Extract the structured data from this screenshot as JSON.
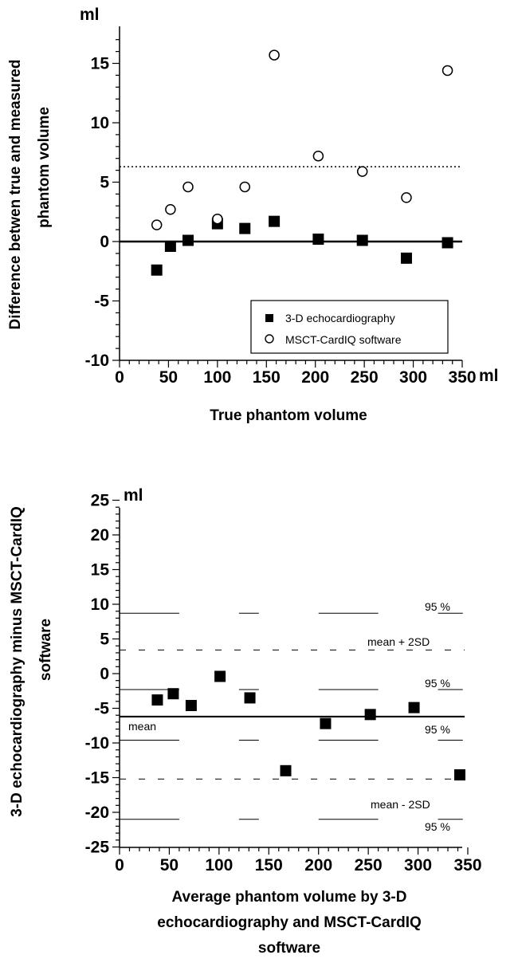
{
  "chart_data": [
    {
      "type": "scatter",
      "xlabel": "True phantom volume",
      "ylabel_lines": [
        "Difference betwen true and measured",
        "phantom volume"
      ],
      "x_unit": "ml",
      "y_unit": "ml",
      "xlim": [
        0,
        350
      ],
      "ylim": [
        -10,
        17
      ],
      "x_ticks": [
        "0",
        "50",
        "100",
        "150",
        "200",
        "250",
        "300",
        "350"
      ],
      "y_ticks": [
        "-10",
        "-5",
        "0",
        "5",
        "10",
        "15"
      ],
      "reference_lines": [
        {
          "y": 0,
          "style": "solid"
        },
        {
          "y": 6.3,
          "style": "dotted"
        }
      ],
      "legend_position": "bottom-right",
      "series": [
        {
          "name": "3-D echocardiography",
          "marker": "filled-square",
          "points": [
            [
              38,
              -2.4
            ],
            [
              52,
              -0.4
            ],
            [
              70,
              0.1
            ],
            [
              100,
              1.5
            ],
            [
              128,
              1.1
            ],
            [
              158,
              1.7
            ],
            [
              203,
              0.2
            ],
            [
              248,
              0.1
            ],
            [
              293,
              -1.4
            ],
            [
              335,
              -0.1
            ]
          ]
        },
        {
          "name": "MSCT-CardIQ software",
          "marker": "open-circle",
          "points": [
            [
              38,
              1.4
            ],
            [
              52,
              2.7
            ],
            [
              70,
              4.6
            ],
            [
              100,
              1.9
            ],
            [
              128,
              4.6
            ],
            [
              158,
              15.7
            ],
            [
              203,
              7.2
            ],
            [
              248,
              5.9
            ],
            [
              293,
              3.7
            ],
            [
              335,
              14.4
            ]
          ]
        }
      ]
    },
    {
      "type": "scatter",
      "xlabel_lines": [
        "Average phantom volume by 3-D",
        "echocardiography and MSCT-CardIQ",
        "software"
      ],
      "ylabel_lines": [
        "3-D echocardiography minus MSCT-CardIQ",
        "software"
      ],
      "y_unit": "ml",
      "xlim": [
        0,
        350
      ],
      "ylim": [
        -25,
        25
      ],
      "x_ticks": [
        "0",
        "50",
        "100",
        "150",
        "200",
        "250",
        "300",
        "350"
      ],
      "y_ticks": [
        "25",
        "20",
        "15",
        "10",
        "5",
        "0",
        "-5",
        "-10",
        "-15",
        "-20",
        "-25"
      ],
      "points": [
        [
          38,
          -3.8
        ],
        [
          54,
          -2.9
        ],
        [
          72,
          -4.6
        ],
        [
          101,
          -0.4
        ],
        [
          131,
          -3.5
        ],
        [
          167,
          -14
        ],
        [
          207,
          -7.2
        ],
        [
          252,
          -5.9
        ],
        [
          296,
          -4.9
        ],
        [
          342,
          -14.6
        ]
      ],
      "reference_lines": [
        {
          "y": -6.2,
          "style": "solid",
          "label": "mean"
        },
        {
          "y": 3.4,
          "style": "dashed",
          "label": "mean + 2SD"
        },
        {
          "y": -15.2,
          "style": "dashed",
          "label": "mean - 2SD"
        }
      ],
      "ci_lines": [
        {
          "y": 8.7,
          "label": "95 %"
        },
        {
          "y": -2.3,
          "label": "95 %"
        },
        {
          "y": -9.6,
          "label": "95 %"
        },
        {
          "y": -21,
          "label": "95 %"
        }
      ]
    }
  ]
}
